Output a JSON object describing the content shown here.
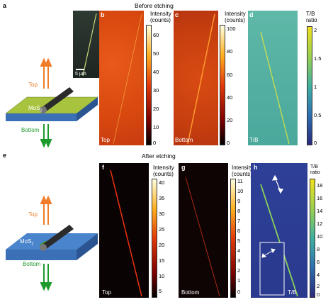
{
  "figure": {
    "section_a": {
      "letter": "a",
      "heading": "Before etching",
      "schematic": {
        "top_label": "Top",
        "bottom_label": "Bottom",
        "material_label": "MoS",
        "material_sub": "2"
      },
      "inset": {
        "scalebar": "5 µm"
      },
      "panels": [
        {
          "letter": "b",
          "corner_label": "Top",
          "colorbar_title": [
            "Intensity",
            "(counts)"
          ],
          "ticks": [
            "60",
            "50",
            "40",
            "30",
            "20",
            "10",
            "0"
          ]
        },
        {
          "letter": "c",
          "corner_label": "Bottom",
          "colorbar_title": [
            "Intensity",
            "(counts)"
          ],
          "ticks": [
            "100",
            "80",
            "60",
            "40",
            "20",
            "0"
          ]
        },
        {
          "letter": "d",
          "corner_label": "T/B",
          "colorbar_title": [
            "T/B",
            "ratio"
          ],
          "ticks": [
            "2",
            "1.5",
            "1",
            "0.5",
            "0"
          ]
        }
      ]
    },
    "section_e": {
      "letter": "e",
      "heading": "After etching",
      "schematic": {
        "top_label": "Top",
        "bottom_label": "Bottom",
        "material_label": "MoS",
        "material_sub": "2"
      },
      "panels": [
        {
          "letter": "f",
          "corner_label": "Top",
          "colorbar_title": [
            "Intensity",
            "(counts)"
          ],
          "ticks": [
            "40",
            "35",
            "30",
            "25",
            "20",
            "15",
            "10",
            "5"
          ]
        },
        {
          "letter": "g",
          "corner_label": "Bottom",
          "colorbar_title": [
            "Intensity",
            "(counts)"
          ],
          "ticks": [
            "11",
            "10",
            "9",
            "8",
            "7",
            "6",
            "5",
            "4",
            "3",
            "2",
            "1",
            "0"
          ]
        },
        {
          "letter": "h",
          "corner_label": "T/B",
          "colorbar_title": [
            "T/B",
            "ratio"
          ],
          "ticks": [
            "18",
            "16",
            "14",
            "12",
            "10",
            "8",
            "6",
            "4",
            "2",
            "0"
          ]
        }
      ]
    },
    "colors": {
      "top_arrow": "#f07d2a",
      "bottom_arrow": "#1e9a2c",
      "substrate": "#3b6fb6",
      "mos2_before": "#9fbf3a",
      "mos2_after": "#3f9a3a"
    }
  }
}
